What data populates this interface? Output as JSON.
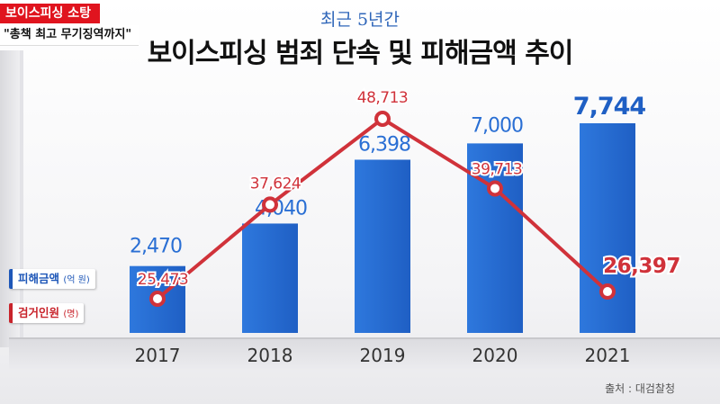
{
  "news": {
    "tag": "보이스피싱 소탕",
    "subtitle": "\"총책 최고 무기징역까지\""
  },
  "header": {
    "subtitle": "최근 5년간",
    "title": "보이스피싱 범죄 단속 및 피해금액 추이"
  },
  "legend": [
    {
      "label": "피해금액",
      "unit": "(억 원)",
      "color": "#1e57b8"
    },
    {
      "label": "검거인원",
      "unit": "(명)",
      "color": "#d0323a"
    }
  ],
  "source": "출처 : 대검찰청",
  "chart_data": {
    "type": "bar",
    "categories": [
      "2017",
      "2018",
      "2019",
      "2020",
      "2021"
    ],
    "series": [
      {
        "name": "피해금액",
        "type": "bar",
        "values": [
          2470,
          4040,
          6398,
          7000,
          7744
        ],
        "labels": [
          "2,470",
          "4,040",
          "6,398",
          "7,000",
          "7,744"
        ],
        "color": "#2a6fd4"
      },
      {
        "name": "검거인원",
        "type": "line",
        "values": [
          25473,
          37624,
          48713,
          39713,
          26397
        ],
        "labels": [
          "25,473",
          "37,624",
          "48,713",
          "39,713",
          "26,397"
        ],
        "color": "#d0323a"
      }
    ],
    "grid": false,
    "legend_position": "left"
  }
}
